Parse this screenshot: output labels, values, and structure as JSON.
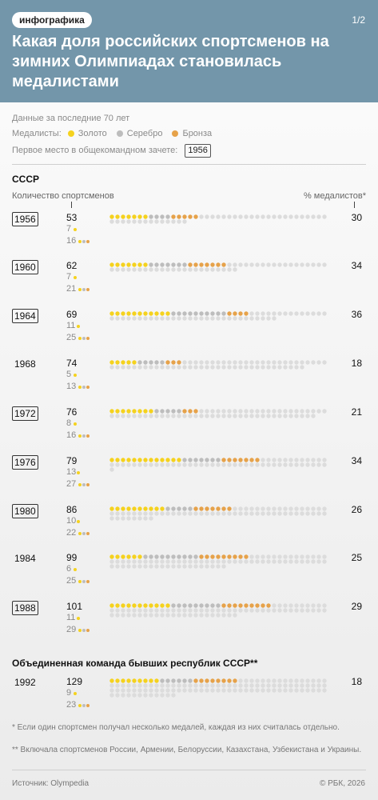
{
  "header": {
    "tag": "инфографика",
    "pager": "1/2",
    "title": "Какая доля российских спортсменов на зимних Олимпиадах становилась медалистами"
  },
  "meta": {
    "period": "Данные за последние 70 лет",
    "medalists_label": "Медалисты:",
    "gold": "Золото",
    "silver": "Серебро",
    "bronze": "Бронза",
    "first_place_label": "Первое место в общекомандном зачете:",
    "first_place_example": "1956"
  },
  "sections": {
    "ussr": "СССР",
    "unified": "Объединенная команда бывших республик СССР**"
  },
  "columns": {
    "athletes": "Количество спортсменов",
    "percent": "% медалистов*"
  },
  "colors": {
    "gold": "#f5d21e",
    "silver": "#bdbdbd",
    "bronze": "#e6a24a",
    "empty": "#dcdcdc"
  },
  "chart_data": {
    "type": "dot-matrix",
    "columns": [
      "Год",
      "Количество спортсменов",
      "Золото",
      "Серебро",
      "Бронза",
      "% медалистов"
    ],
    "rows": [
      {
        "year": "1956",
        "first_place": true,
        "total": 53,
        "gold": 7,
        "silver": 4,
        "bronze": 5,
        "medalists_pct": 30
      },
      {
        "year": "1960",
        "first_place": true,
        "total": 62,
        "gold": 7,
        "silver": 7,
        "bronze": 7,
        "medalists_pct": 34
      },
      {
        "year": "1964",
        "first_place": true,
        "total": 69,
        "gold": 11,
        "silver": 10,
        "bronze": 4,
        "medalists_pct": 36
      },
      {
        "year": "1968",
        "first_place": false,
        "total": 74,
        "gold": 5,
        "silver": 5,
        "bronze": 3,
        "medalists_pct": 18
      },
      {
        "year": "1972",
        "first_place": true,
        "total": 76,
        "gold": 8,
        "silver": 5,
        "bronze": 3,
        "medalists_pct": 21
      },
      {
        "year": "1976",
        "first_place": true,
        "total": 79,
        "gold": 13,
        "silver": 7,
        "bronze": 7,
        "medalists_pct": 34
      },
      {
        "year": "1980",
        "first_place": true,
        "total": 86,
        "gold": 10,
        "silver": 5,
        "bronze": 7,
        "medalists_pct": 26
      },
      {
        "year": "1984",
        "first_place": false,
        "total": 99,
        "gold": 6,
        "silver": 10,
        "bronze": 9,
        "medalists_pct": 25
      },
      {
        "year": "1988",
        "first_place": true,
        "total": 101,
        "gold": 11,
        "silver": 9,
        "bronze": 9,
        "medalists_pct": 29
      },
      {
        "year": "1992",
        "first_place": false,
        "total": 129,
        "gold": 9,
        "silver": 6,
        "bronze": 8,
        "medalists_pct": 18
      }
    ]
  },
  "footnotes": {
    "note1": "* Если один спортсмен получал несколько медалей, каждая из них считалась отдельно.",
    "note2": "** Включала спортсменов России, Армении, Белоруссии, Казахстана, Узбекистана и Украины."
  },
  "footer": {
    "source": "Источник: Olympedia",
    "copyright": "© РБК, 2026"
  }
}
